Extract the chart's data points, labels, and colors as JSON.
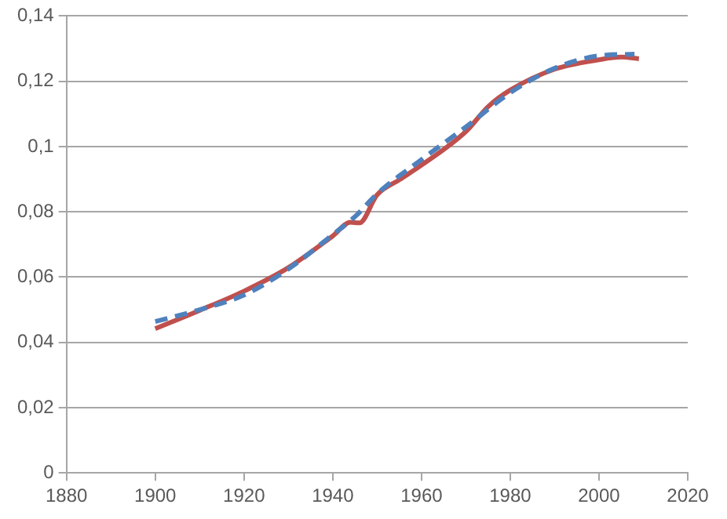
{
  "chart_data": {
    "type": "line",
    "grid": "y",
    "legend": false,
    "marker": "none",
    "xlim": [
      1880,
      2020
    ],
    "xticks": [
      1880,
      1900,
      1920,
      1940,
      1960,
      1980,
      2000,
      2020
    ],
    "ylim": [
      0,
      0.14
    ],
    "yticks": [
      0,
      {
        "value": 0.02,
        "label": "0,02"
      },
      {
        "value": 0.04,
        "label": "0,04"
      },
      {
        "value": 0.06,
        "label": "0,06"
      },
      {
        "value": 0.08,
        "label": "0,08"
      },
      {
        "value": 0.1,
        "label": "0,1"
      },
      {
        "value": 0.12,
        "label": "0,12"
      },
      {
        "value": 0.14,
        "label": "0,14"
      }
    ],
    "series": [
      {
        "color": "#4f81bd",
        "line_style": "dashed",
        "x": [
          1900,
          1910,
          1920,
          1930,
          1940,
          1945,
          1950,
          1960,
          1970,
          1980,
          1990,
          2000,
          2008
        ],
        "values": [
          0.0464,
          0.05,
          0.0545,
          0.0625,
          0.073,
          0.0785,
          0.0855,
          0.096,
          0.106,
          0.1165,
          0.124,
          0.1278,
          0.1283
        ]
      },
      {
        "color": "#c0504d",
        "line_style": "solid",
        "x": [
          1900,
          1910,
          1920,
          1930,
          1940,
          1944,
          1946,
          1950,
          1955,
          1960,
          1970,
          1975,
          1980,
          1990,
          2000,
          2005,
          2009
        ],
        "values": [
          0.0442,
          0.0498,
          0.0557,
          0.0629,
          0.0726,
          0.0768,
          0.0766,
          0.0852,
          0.0898,
          0.0943,
          0.1046,
          0.1122,
          0.1173,
          0.1237,
          0.1266,
          0.1274,
          0.1269
        ]
      }
    ]
  }
}
